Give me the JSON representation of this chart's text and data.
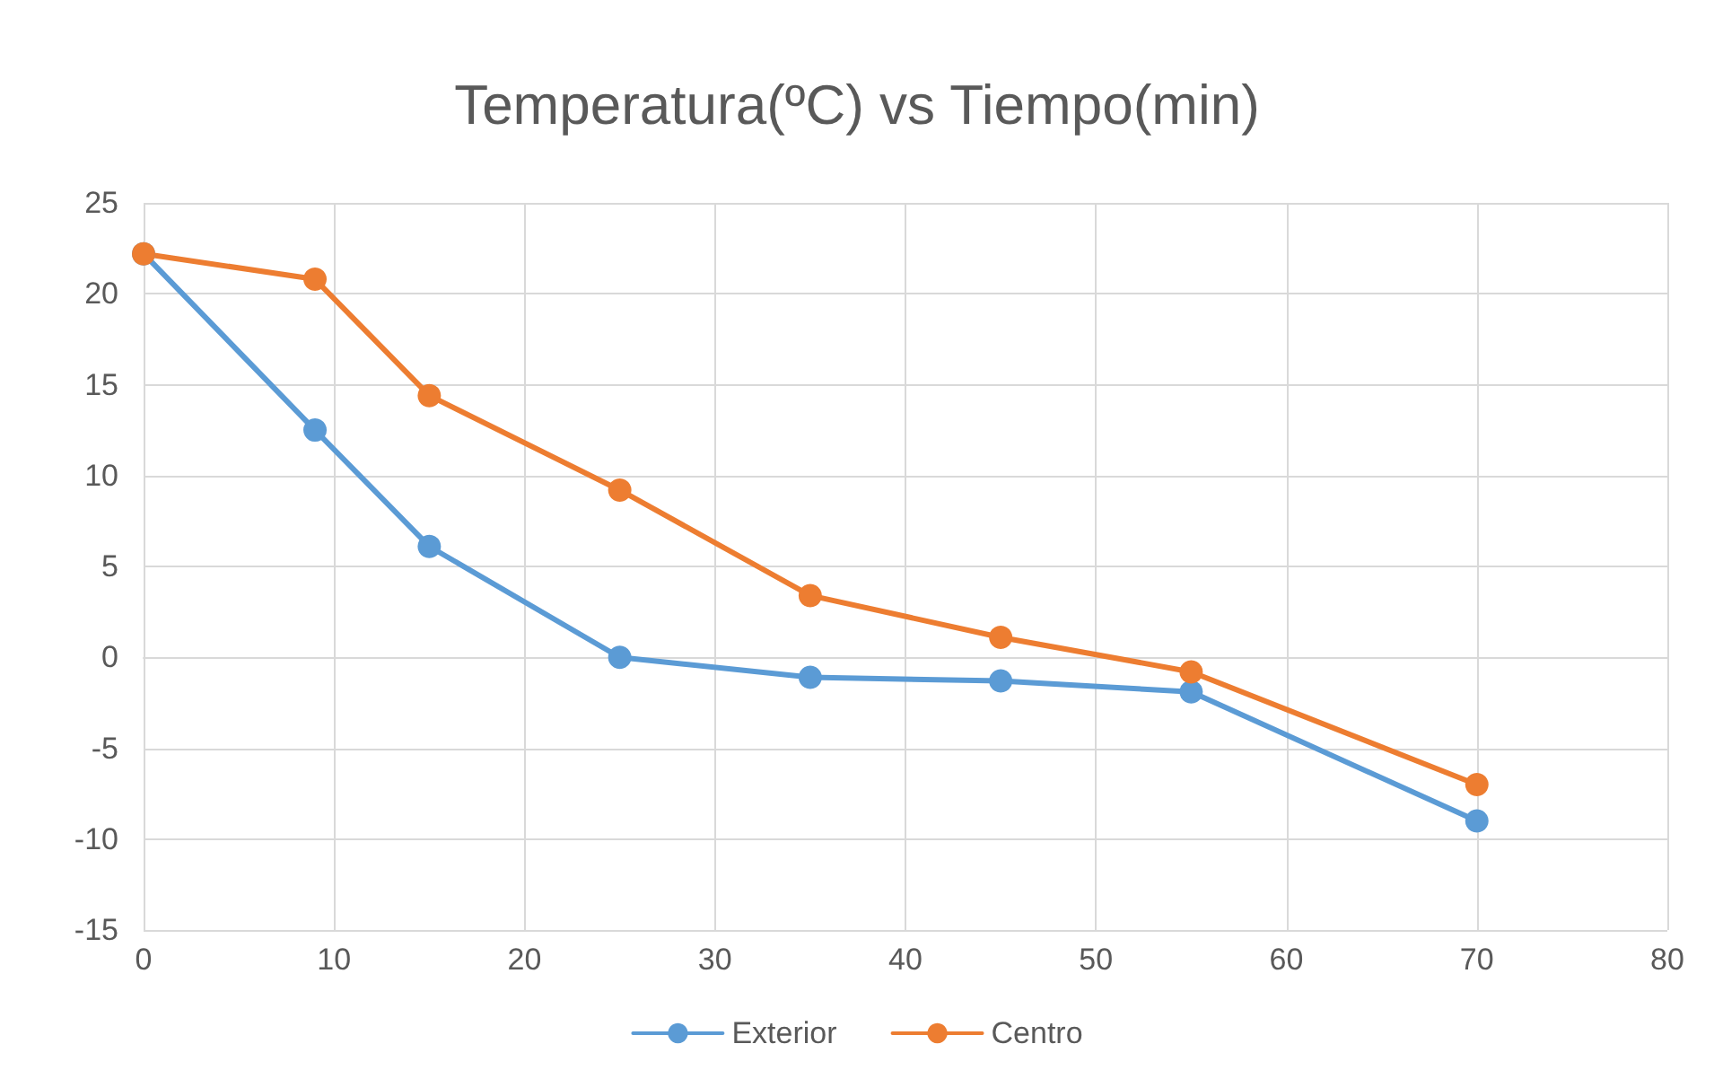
{
  "chart_data": {
    "type": "line",
    "title": "Temperatura(ºC) vs Tiempo(min)",
    "x": [
      0,
      9,
      15,
      25,
      35,
      45,
      55,
      70
    ],
    "series": [
      {
        "name": "Exterior",
        "color": "#5b9bd5",
        "values": [
          22.2,
          12.5,
          6.1,
          0,
          -1.1,
          -1.3,
          -1.9,
          -9
        ]
      },
      {
        "name": "Centro",
        "color": "#ed7d31",
        "values": [
          22.2,
          20.8,
          14.4,
          9.2,
          3.4,
          1.1,
          -0.8,
          -7
        ]
      }
    ],
    "xlim": [
      0,
      80
    ],
    "xticks": [
      0,
      10,
      20,
      30,
      40,
      50,
      60,
      70,
      80
    ],
    "ylim": [
      -15,
      25
    ],
    "yticks": [
      -15,
      -10,
      -5,
      0,
      5,
      10,
      15,
      20,
      25
    ],
    "grid": true,
    "legend": "bottom",
    "marker": "circle",
    "line_style": "solid"
  }
}
